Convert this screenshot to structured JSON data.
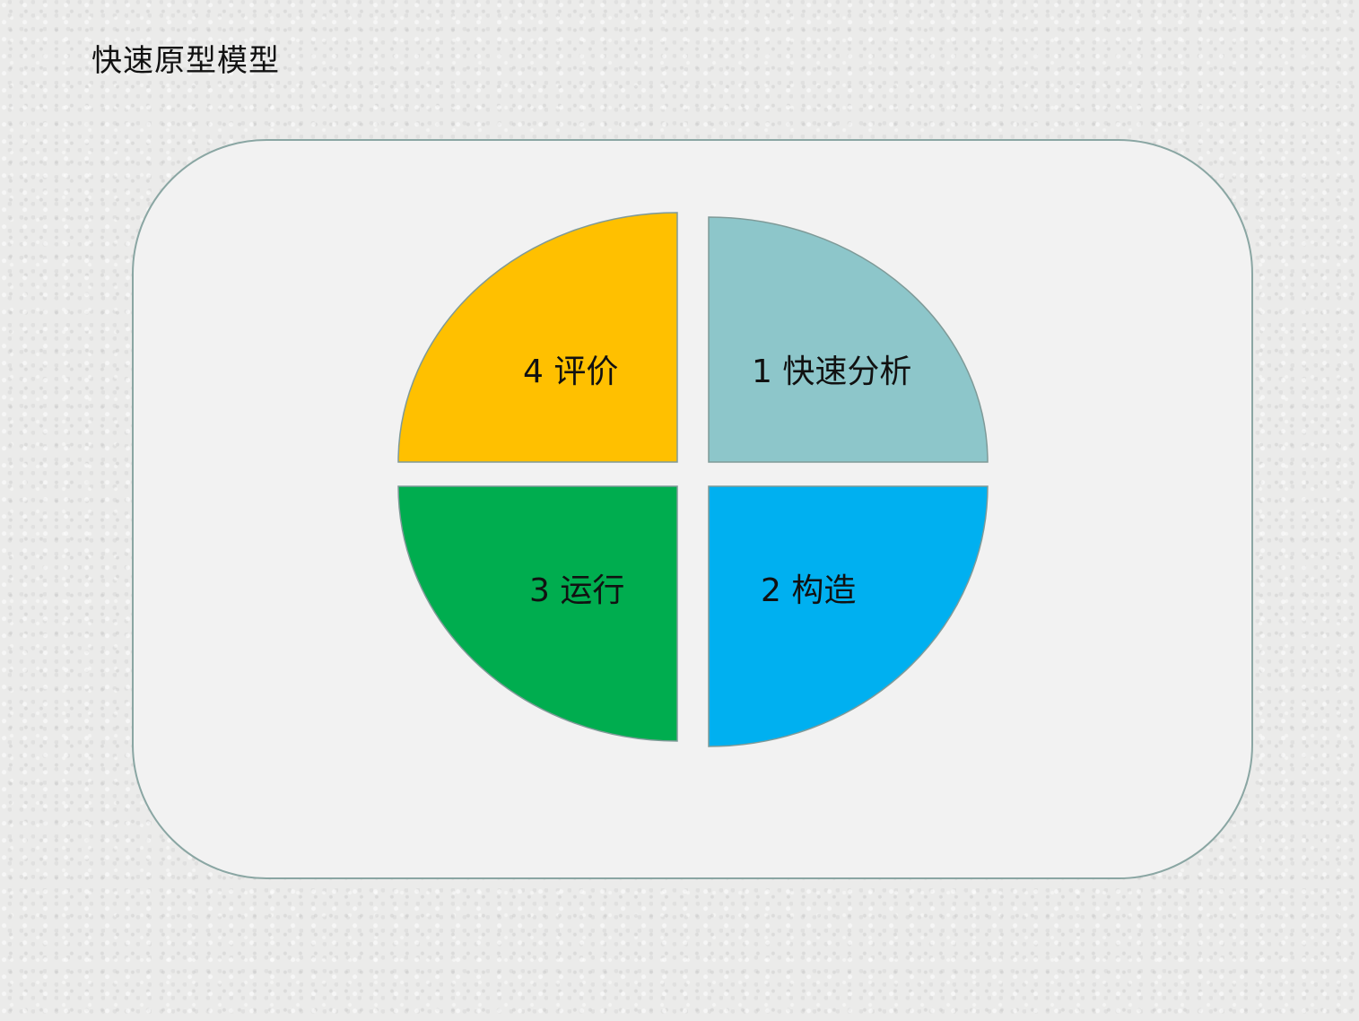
{
  "title": "快速原型模型",
  "quadrants": [
    {
      "id": "analysis",
      "label": "1 快速分析",
      "color": "#8dc6ca"
    },
    {
      "id": "construct",
      "label": "2 构造",
      "color": "#00b0f0"
    },
    {
      "id": "run",
      "label": "3 运行",
      "color": "#00ad4f"
    },
    {
      "id": "evaluate",
      "label": "4 评价",
      "color": "#ffc000"
    }
  ],
  "colors": {
    "panel_bg": "#f2f2f2",
    "panel_border": "#8aa6a3",
    "segment_stroke": "#7f9a98"
  }
}
